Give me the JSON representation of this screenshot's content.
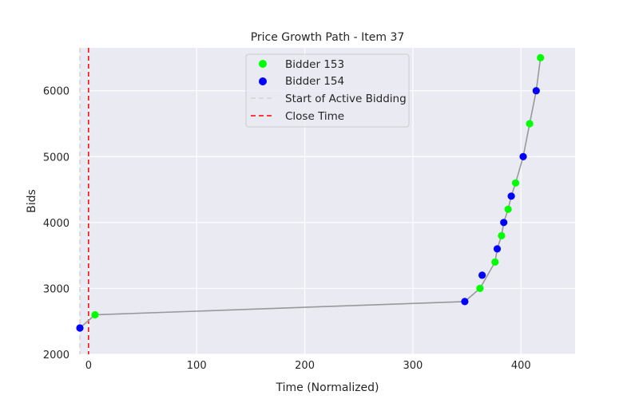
{
  "chart_data": {
    "type": "scatter",
    "title": "Price Growth Path - Item 37",
    "xlabel": "Time (Normalized)",
    "ylabel": "Bids",
    "xlim": [
      -8,
      450
    ],
    "ylim": [
      2000,
      6650
    ],
    "xticks": [
      0,
      100,
      200,
      300,
      400
    ],
    "yticks": [
      2000,
      3000,
      4000,
      5000,
      6000
    ],
    "grid": true,
    "legend_position": "top-center",
    "colors": {
      "background": "#eaeaf2",
      "grid": "#ffffff",
      "path_line": "#999999",
      "bidder_153": "#00ff00",
      "bidder_154": "#0000ff",
      "active_start": "#d3d3d3",
      "close_time": "#ff0000"
    },
    "path": {
      "x": [
        -8,
        6,
        348,
        362,
        376,
        378,
        382,
        384,
        388,
        391,
        395,
        402,
        408,
        414,
        418
      ],
      "y": [
        2400,
        2600,
        2800,
        3000,
        3400,
        3600,
        3800,
        4000,
        4200,
        4400,
        4600,
        5000,
        5500,
        6000,
        6500
      ]
    },
    "series": [
      {
        "name": "Bidder 153",
        "marker": "circle",
        "color": "#00ff00",
        "x": [
          6,
          362,
          376,
          382,
          388,
          395,
          408,
          418
        ],
        "y": [
          2600,
          3000,
          3400,
          3800,
          4200,
          4600,
          5500,
          6500
        ]
      },
      {
        "name": "Bidder 154",
        "marker": "circle",
        "color": "#0000ff",
        "x": [
          -8,
          348,
          364,
          378,
          384,
          391,
          402,
          414
        ],
        "y": [
          2400,
          2800,
          3200,
          3600,
          4000,
          4400,
          5000,
          6000
        ]
      }
    ],
    "vlines": [
      {
        "name": "Start of Active Bidding",
        "x": -8,
        "color": "#d3d3d3",
        "style": "dashed"
      },
      {
        "name": "Close Time",
        "x": 0,
        "color": "#ff0000",
        "style": "dashed"
      }
    ]
  }
}
